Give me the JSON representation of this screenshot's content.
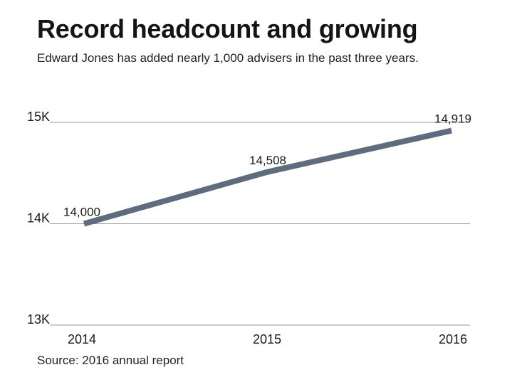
{
  "title": "Record headcount and growing",
  "subtitle": "Edward Jones has added nearly 1,000 advisers in the past three years.",
  "source": "Source: 2016 annual report",
  "colors": {
    "line": "#5e6c7e",
    "grid": "#9a9a9a"
  },
  "chart_data": {
    "type": "line",
    "x": [
      "2014",
      "2015",
      "2016"
    ],
    "series": [
      {
        "values": [
          14000,
          14508,
          14919
        ],
        "labels": [
          "14,000",
          "14,508",
          "14,919"
        ]
      }
    ],
    "ylim": [
      13000,
      15000
    ],
    "yticks": [
      13000,
      14000,
      15000
    ],
    "ytick_labels": [
      "13K",
      "14K",
      "15K"
    ],
    "xlabel": "",
    "ylabel": "",
    "grid": true,
    "legend": "none"
  }
}
